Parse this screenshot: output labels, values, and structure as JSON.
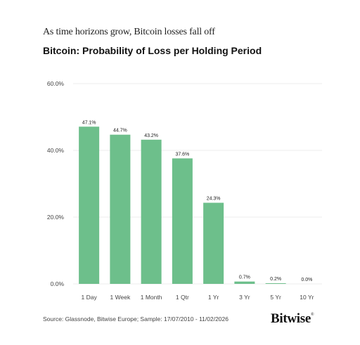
{
  "header": {
    "headline": "As time horizons grow, Bitcoin losses fall off"
  },
  "chart_data": {
    "type": "bar",
    "title": "Bitcoin: Probability of Loss per Holding Period",
    "categories": [
      "1 Day",
      "1 Week",
      "1 Month",
      "1 Qtr",
      "1 Yr",
      "3 Yr",
      "5 Yr",
      "10 Yr"
    ],
    "values": [
      47.1,
      44.7,
      43.2,
      37.6,
      24.3,
      0.7,
      0.2,
      0.0
    ],
    "value_labels": [
      "47.1%",
      "44.7%",
      "43.2%",
      "37.6%",
      "24.3%",
      "0.7%",
      "0.2%",
      "0.0%"
    ],
    "yticks": [
      0,
      20,
      40,
      60
    ],
    "ytick_labels": [
      "0.0%",
      "20.0%",
      "40.0%",
      "60.0%"
    ],
    "ylim": [
      0,
      60
    ],
    "xlabel": "",
    "ylabel": "",
    "grid": true,
    "bar_color": "#6dbf8b",
    "grid_color": "#ececec"
  },
  "footer": {
    "source": "Source: Glassnode, Bitwise Europe; Sample: 17/07/2010 - 11/02/2026",
    "logo_text": "Bitwise",
    "logo_mark": "®"
  }
}
